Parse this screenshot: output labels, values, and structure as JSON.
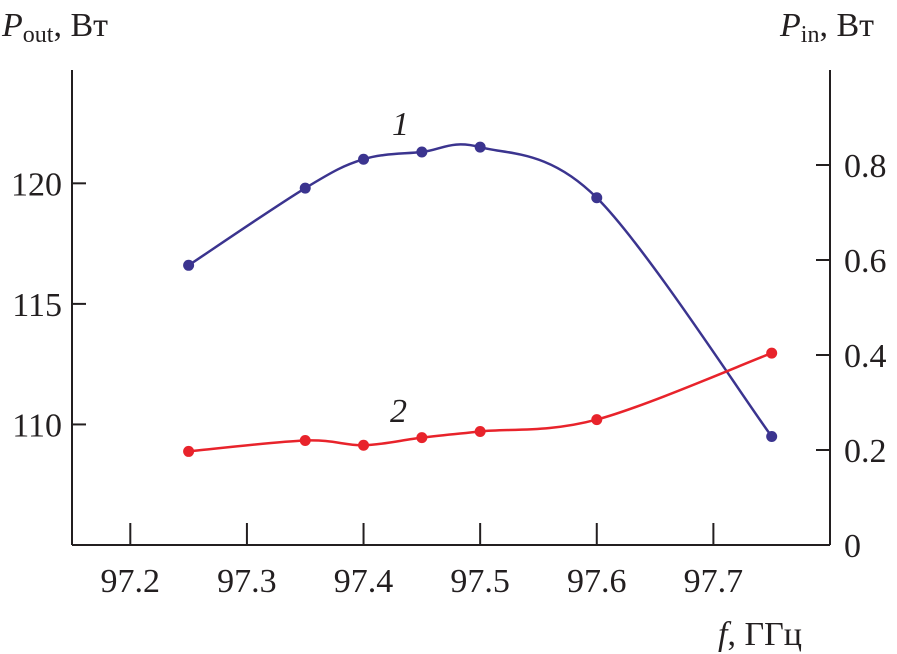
{
  "chart_data": {
    "type": "line",
    "title": "",
    "xlabel": {
      "var": "f",
      "unit": ", ГГц"
    },
    "ylabel_left": {
      "var": "P",
      "sub": "out",
      "unit": ", Вт"
    },
    "ylabel_right": {
      "var": "P",
      "sub": "in",
      "unit": ", Вт"
    },
    "xlim": [
      97.15,
      97.8
    ],
    "ylim_left": [
      105,
      124.7
    ],
    "ylim_right": [
      0,
      1.0
    ],
    "x_ticks": [
      "97.2",
      "97.3",
      "97.4",
      "97.5",
      "97.6",
      "97.7"
    ],
    "x_tick_values": [
      97.2,
      97.3,
      97.4,
      97.5,
      97.6,
      97.7
    ],
    "y_left_ticks": [
      "110",
      "115",
      "120"
    ],
    "y_left_tick_values": [
      110,
      115,
      120
    ],
    "y_right_ticks": [
      "0",
      "0.2",
      "0.4",
      "0.6",
      "0.8"
    ],
    "y_right_tick_values": [
      0,
      0.2,
      0.4,
      0.6,
      0.8
    ],
    "grid": false,
    "series": [
      {
        "name": "1",
        "axis": "left",
        "color": "#3b348f",
        "x": [
          97.25,
          97.35,
          97.4,
          97.45,
          97.5,
          97.6,
          97.75
        ],
        "values": [
          116.6,
          119.8,
          121.0,
          121.3,
          121.5,
          119.4,
          109.5
        ]
      },
      {
        "name": "2",
        "axis": "right",
        "color": "#e8232b",
        "x": [
          97.25,
          97.35,
          97.4,
          97.45,
          97.5,
          97.6,
          97.75
        ],
        "values": [
          0.197,
          0.22,
          0.21,
          0.226,
          0.239,
          0.264,
          0.404
        ]
      }
    ]
  }
}
